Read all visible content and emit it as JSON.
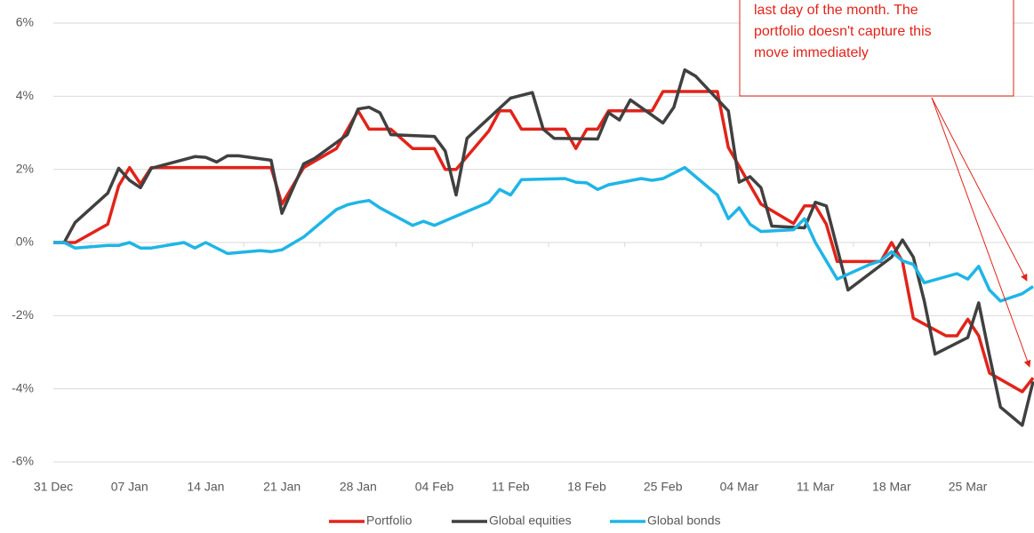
{
  "chart_data": {
    "type": "line",
    "annotation": [
      "last day of the month. The",
      "portfolio doesn't capture this",
      "move immediately"
    ],
    "xlim": [
      0,
      90
    ],
    "xticks": [
      {
        "value": 0,
        "label": "31 Dec"
      },
      {
        "value": 7,
        "label": "07 Jan"
      },
      {
        "value": 14,
        "label": "14 Jan"
      },
      {
        "value": 21,
        "label": "21 Jan"
      },
      {
        "value": 28,
        "label": "28 Jan"
      },
      {
        "value": 35,
        "label": "04 Feb"
      },
      {
        "value": 42,
        "label": "11 Feb"
      },
      {
        "value": 49,
        "label": "18 Feb"
      },
      {
        "value": 56,
        "label": "25 Feb"
      },
      {
        "value": 63,
        "label": "04 Mar"
      },
      {
        "value": 70,
        "label": "11 Mar"
      },
      {
        "value": 77,
        "label": "18 Mar"
      },
      {
        "value": 84,
        "label": "25 Mar"
      }
    ],
    "ylim": [
      -6,
      6
    ],
    "yticks": [
      {
        "value": -6,
        "label": "-6%"
      },
      {
        "value": -4,
        "label": "-4%"
      },
      {
        "value": -2,
        "label": "-2%"
      },
      {
        "value": 0,
        "label": "0%"
      },
      {
        "value": 2,
        "label": "2%"
      },
      {
        "value": 4,
        "label": "4%"
      },
      {
        "value": 6,
        "label": "6%"
      }
    ],
    "grid": true,
    "legend": "bottom",
    "series": [
      {
        "name": "Portfolio",
        "color": "#e2231a",
        "x": [
          0,
          1,
          2,
          5,
          6,
          7,
          8,
          9,
          20,
          21,
          23,
          26,
          28,
          29,
          31,
          33,
          35,
          36,
          37,
          40,
          41,
          42,
          43,
          47,
          48,
          49,
          50,
          51,
          55,
          56,
          61,
          62,
          65,
          68,
          69,
          70,
          71,
          72,
          76,
          77,
          78,
          79,
          82,
          83,
          84,
          85,
          86,
          89,
          90
        ],
        "values": [
          0,
          0,
          0,
          0.5,
          1.55,
          2.05,
          1.6,
          2.05,
          2.05,
          1.05,
          2.05,
          2.57,
          3.6,
          3.1,
          3.1,
          2.57,
          2.57,
          2.0,
          2.0,
          3.05,
          3.6,
          3.6,
          3.1,
          3.1,
          2.57,
          3.1,
          3.1,
          3.6,
          3.6,
          4.13,
          4.13,
          2.6,
          1.05,
          0.52,
          1.0,
          1.0,
          0.5,
          -0.52,
          -0.52,
          0,
          -0.52,
          -2.07,
          -2.55,
          -2.55,
          -2.1,
          -2.55,
          -3.57,
          -4.08,
          -3.7
        ]
      },
      {
        "name": "Global equities",
        "color": "#404040",
        "x": [
          0,
          1,
          2,
          5,
          6,
          7,
          8,
          9,
          13,
          14,
          15,
          16,
          17,
          20,
          21,
          23,
          24,
          27,
          28,
          29,
          30,
          31,
          35,
          36,
          37,
          38,
          42,
          44,
          45,
          46,
          50,
          51,
          52,
          53,
          56,
          57,
          58,
          59,
          62,
          63,
          64,
          65,
          66,
          69,
          70,
          71,
          73,
          77,
          78,
          79,
          80,
          81,
          84,
          85,
          86,
          87,
          89,
          90
        ],
        "values": [
          0,
          0,
          0.55,
          1.35,
          2.03,
          1.7,
          1.5,
          2.03,
          2.35,
          2.33,
          2.2,
          2.37,
          2.37,
          2.25,
          0.8,
          2.15,
          2.3,
          2.95,
          3.65,
          3.7,
          3.55,
          2.95,
          2.9,
          2.5,
          1.3,
          2.85,
          3.95,
          4.1,
          3.1,
          2.85,
          2.83,
          3.55,
          3.35,
          3.9,
          3.27,
          3.7,
          4.72,
          4.55,
          3.6,
          1.65,
          1.8,
          1.5,
          0.45,
          0.4,
          1.1,
          1.0,
          -1.3,
          -0.4,
          0.07,
          -0.4,
          -1.6,
          -3.05,
          -2.6,
          -1.65,
          -3.1,
          -4.5,
          -5.0,
          -3.8
        ]
      },
      {
        "name": "Global bonds",
        "color": "#1fb5e6",
        "x": [
          0,
          1,
          2,
          5,
          6,
          7,
          8,
          9,
          12,
          13,
          14,
          16,
          19,
          20,
          21,
          23,
          26,
          27,
          28,
          29,
          30,
          33,
          34,
          35,
          40,
          41,
          42,
          43,
          47,
          48,
          49,
          50,
          51,
          54,
          55,
          56,
          58,
          61,
          62,
          63,
          64,
          65,
          68,
          69,
          70,
          72,
          75,
          76,
          77,
          78,
          79,
          80,
          83,
          84,
          85,
          86,
          87,
          89,
          90
        ],
        "values": [
          0,
          0,
          -0.15,
          -0.08,
          -0.08,
          0,
          -0.15,
          -0.15,
          0,
          -0.15,
          0,
          -0.3,
          -0.22,
          -0.25,
          -0.2,
          0.15,
          0.9,
          1.03,
          1.1,
          1.15,
          0.95,
          0.47,
          0.58,
          0.47,
          1.1,
          1.45,
          1.3,
          1.72,
          1.75,
          1.65,
          1.63,
          1.45,
          1.58,
          1.75,
          1.7,
          1.75,
          2.05,
          1.3,
          0.65,
          0.95,
          0.5,
          0.3,
          0.35,
          0.65,
          0.0,
          -1.0,
          -0.6,
          -0.5,
          -0.25,
          -0.5,
          -0.6,
          -1.1,
          -0.85,
          -1.0,
          -0.65,
          -1.3,
          -1.6,
          -1.4,
          -1.2
        ]
      }
    ]
  }
}
